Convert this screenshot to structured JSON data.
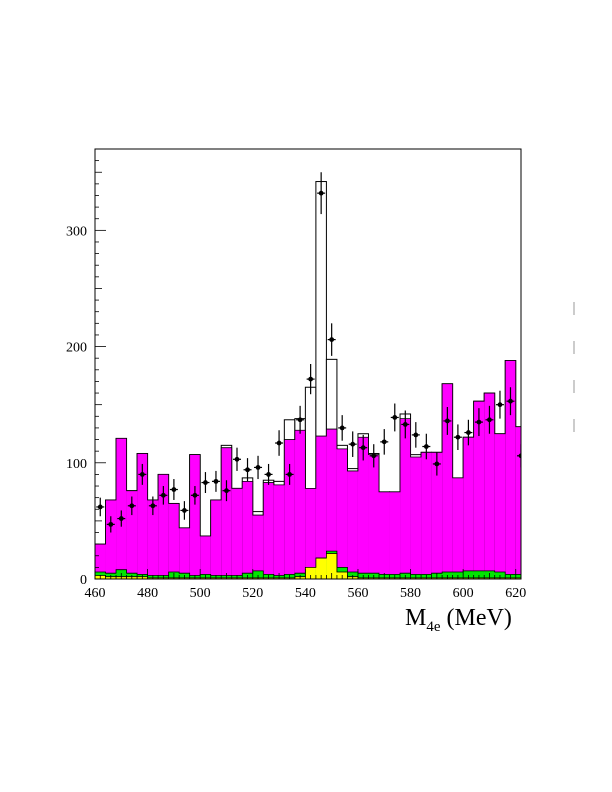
{
  "chart_data": {
    "type": "bar",
    "title": "",
    "xlabel": "M",
    "xlabel_subscript": "4e",
    "xlabel_unit": "(MeV)",
    "ylabel": "",
    "xlim": [
      460,
      622
    ],
    "ylim": [
      0,
      370
    ],
    "xticks": [
      460,
      480,
      500,
      520,
      540,
      560,
      580,
      600,
      620
    ],
    "yticks": [
      0,
      100,
      200,
      300
    ],
    "grid": false,
    "legend": "none",
    "bin_edges": [
      460,
      464,
      468,
      472,
      476,
      480,
      484,
      488,
      492,
      496,
      500,
      504,
      508,
      512,
      516,
      520,
      524,
      528,
      532,
      536,
      540,
      544,
      548,
      552,
      556,
      560,
      564,
      568,
      572,
      576,
      580,
      584,
      588,
      592,
      596,
      600,
      604,
      608,
      612,
      616,
      620,
      624
    ],
    "series": [
      {
        "color": "#000000",
        "style": "histogram-outline",
        "values": [
          30,
          68,
          121,
          76,
          108,
          68,
          90,
          65,
          44,
          107,
          37,
          68,
          115,
          78,
          87,
          58,
          85,
          84,
          137,
          138,
          165,
          342,
          189,
          115,
          95,
          125,
          108,
          75,
          75,
          142,
          107,
          109,
          109,
          168,
          87,
          122,
          153,
          160,
          125,
          188,
          131
        ]
      },
      {
        "color": "#ff00ff",
        "style": "histogram-filled",
        "values": [
          30,
          68,
          121,
          76,
          108,
          68,
          90,
          65,
          44,
          107,
          37,
          68,
          113,
          78,
          84,
          55,
          83,
          81,
          120,
          128,
          78,
          123,
          129,
          112,
          93,
          122,
          107,
          75,
          75,
          138,
          105,
          109,
          109,
          168,
          87,
          122,
          153,
          160,
          125,
          188,
          131
        ]
      },
      {
        "color": "#00e600",
        "style": "histogram-filled",
        "values": [
          6,
          5,
          8,
          5,
          4,
          3,
          3,
          6,
          5,
          3,
          4,
          3,
          3,
          3,
          5,
          7,
          4,
          3,
          4,
          5,
          10,
          18,
          24,
          10,
          6,
          5,
          5,
          4,
          4,
          5,
          4,
          4,
          5,
          6,
          6,
          7,
          7,
          7,
          6,
          4,
          4
        ]
      },
      {
        "color": "#ffff00",
        "style": "histogram-filled",
        "values": [
          3,
          2,
          2,
          2,
          2,
          1,
          1,
          1,
          1,
          1,
          1,
          1,
          1,
          1,
          1,
          1,
          1,
          1,
          1,
          2,
          10,
          18,
          22,
          6,
          2,
          1,
          1,
          1,
          1,
          1,
          1,
          1,
          1,
          1,
          1,
          1,
          1,
          1,
          1,
          1,
          1
        ]
      },
      {
        "color": "#000000",
        "style": "points-with-errors",
        "x": [
          462,
          466,
          470,
          474,
          478,
          482,
          486,
          490,
          494,
          498,
          502,
          506,
          510,
          514,
          518,
          522,
          526,
          530,
          534,
          538,
          542,
          546,
          550,
          554,
          558,
          562,
          566,
          570,
          574,
          578,
          582,
          586,
          590,
          594,
          598,
          602,
          606,
          610,
          614,
          618,
          622
        ],
        "values": [
          62,
          47,
          52,
          63,
          90,
          63,
          72,
          77,
          59,
          72,
          83,
          84,
          76,
          103,
          94,
          96,
          90,
          117,
          90,
          137,
          172,
          332,
          206,
          130,
          116,
          113,
          106,
          118,
          139,
          133,
          124,
          114,
          99,
          136,
          122,
          126,
          135,
          137,
          150,
          153,
          106
        ],
        "errors": [
          8,
          7,
          7,
          8,
          9,
          8,
          8,
          9,
          8,
          8,
          9,
          9,
          9,
          10,
          10,
          10,
          9,
          11,
          9,
          12,
          13,
          18,
          14,
          11,
          11,
          11,
          10,
          11,
          12,
          12,
          11,
          11,
          10,
          12,
          11,
          11,
          12,
          12,
          12,
          12,
          10
        ]
      }
    ]
  },
  "frame": {
    "stray_marks_count": 4
  }
}
